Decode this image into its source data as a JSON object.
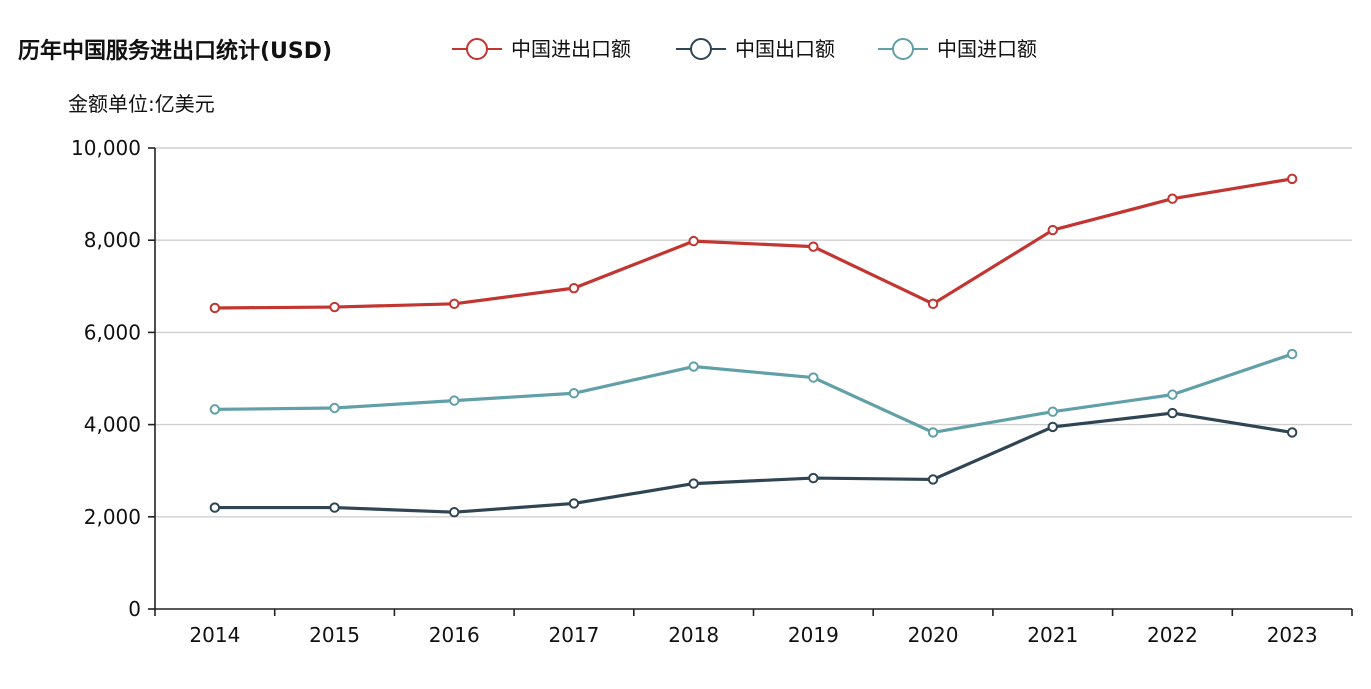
{
  "chart_data": {
    "type": "line",
    "title": "历年中国服务进出口统计(USD)",
    "ylabel": "金额单位:亿美元",
    "xlabel": "",
    "categories": [
      "2014",
      "2015",
      "2016",
      "2017",
      "2018",
      "2019",
      "2020",
      "2021",
      "2022",
      "2023"
    ],
    "ylim": [
      0,
      10000
    ],
    "yticks": [
      0,
      2000,
      4000,
      6000,
      8000,
      10000
    ],
    "ytick_labels": [
      "0",
      "2,000",
      "4,000",
      "6,000",
      "8,000",
      "10,000"
    ],
    "legend_position": "top",
    "grid": true,
    "series": [
      {
        "name": "中国进出口额",
        "color": "#c23531",
        "values": [
          6530,
          6550,
          6620,
          6960,
          7980,
          7860,
          6620,
          8220,
          8900,
          9330
        ]
      },
      {
        "name": "中国出口额",
        "color": "#2f4554",
        "values": [
          2200,
          2200,
          2100,
          2290,
          2720,
          2840,
          2810,
          3950,
          4250,
          3830
        ]
      },
      {
        "name": "中国进口额",
        "color": "#61a0a8",
        "values": [
          4330,
          4360,
          4520,
          4680,
          5260,
          5020,
          3830,
          4280,
          4650,
          5530
        ]
      }
    ]
  }
}
